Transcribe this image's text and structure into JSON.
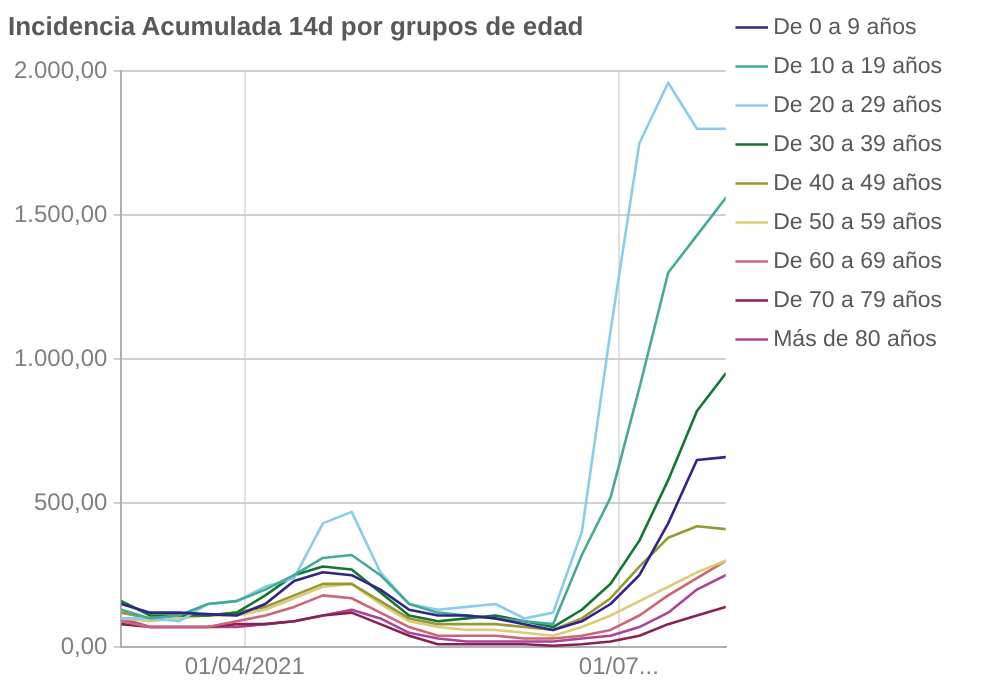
{
  "chart_data": {
    "type": "line",
    "title": "Incidencia Acumulada 14d por grupos de edad",
    "x": [
      "2021-03-02",
      "2021-03-09",
      "2021-03-16",
      "2021-03-23",
      "2021-03-30",
      "2021-04-06",
      "2021-04-13",
      "2021-04-20",
      "2021-04-27",
      "2021-05-04",
      "2021-05-11",
      "2021-05-18",
      "2021-05-25",
      "2021-06-01",
      "2021-06-08",
      "2021-06-15",
      "2021-06-22",
      "2021-06-29",
      "2021-07-06",
      "2021-07-13",
      "2021-07-20",
      "2021-07-27"
    ],
    "series": [
      {
        "name": "De 0 a 9 años",
        "color": "#332288",
        "values": [
          150,
          120,
          120,
          115,
          110,
          150,
          230,
          260,
          250,
          200,
          130,
          110,
          110,
          100,
          80,
          60,
          90,
          150,
          250,
          430,
          650,
          660
        ]
      },
      {
        "name": "De 10 a 19 años",
        "color": "#44aa99",
        "values": [
          130,
          100,
          110,
          150,
          160,
          200,
          250,
          310,
          320,
          250,
          150,
          120,
          110,
          100,
          90,
          80,
          320,
          520,
          900,
          1300,
          1430,
          1560
        ]
      },
      {
        "name": "De 20 a 29 años",
        "color": "#88ccee",
        "values": [
          100,
          100,
          90,
          150,
          160,
          210,
          240,
          430,
          470,
          260,
          150,
          130,
          140,
          150,
          100,
          120,
          400,
          1100,
          1750,
          1960,
          1800,
          1800
        ]
      },
      {
        "name": "De 30 a 39 años",
        "color": "#117733",
        "values": [
          160,
          110,
          110,
          110,
          120,
          180,
          250,
          280,
          270,
          190,
          110,
          90,
          100,
          110,
          90,
          70,
          130,
          220,
          370,
          580,
          820,
          950
        ]
      },
      {
        "name": "De 40 a 49 años",
        "color": "#999933",
        "values": [
          120,
          100,
          110,
          110,
          120,
          140,
          180,
          220,
          220,
          160,
          100,
          80,
          80,
          80,
          70,
          60,
          100,
          170,
          280,
          380,
          420,
          410
        ]
      },
      {
        "name": "De 50 a 59 años",
        "color": "#ddcc77",
        "values": [
          100,
          90,
          100,
          110,
          110,
          130,
          170,
          210,
          220,
          150,
          90,
          70,
          60,
          60,
          50,
          40,
          70,
          110,
          160,
          210,
          260,
          300
        ]
      },
      {
        "name": "De 60 a 69 años",
        "color": "#cc6677",
        "values": [
          90,
          70,
          70,
          70,
          90,
          110,
          140,
          180,
          170,
          120,
          70,
          40,
          40,
          40,
          30,
          30,
          40,
          60,
          110,
          180,
          240,
          300
        ]
      },
      {
        "name": "De 70 a 79 años",
        "color": "#882255",
        "values": [
          80,
          70,
          70,
          70,
          80,
          80,
          90,
          110,
          120,
          80,
          40,
          10,
          10,
          10,
          10,
          5,
          10,
          20,
          40,
          80,
          110,
          140
        ]
      },
      {
        "name": "Más de 80 años",
        "color": "#aa4499",
        "values": [
          100,
          70,
          70,
          70,
          70,
          80,
          90,
          110,
          130,
          100,
          50,
          30,
          20,
          20,
          20,
          20,
          30,
          40,
          70,
          120,
          200,
          250
        ]
      }
    ],
    "xlim": [
      "2021-03-02",
      "2021-07-27"
    ],
    "xticks": [
      {
        "value": "2021-04-01",
        "label": "01/04/2021"
      },
      {
        "value": "2021-07-01",
        "label": "01/07..."
      }
    ],
    "ylim": [
      0,
      2000
    ],
    "yticks": [
      {
        "value": 0,
        "label": "0,00"
      },
      {
        "value": 500,
        "label": "500,00"
      },
      {
        "value": 1000,
        "label": "1.000,00"
      },
      {
        "value": 1500,
        "label": "1.500,00"
      },
      {
        "value": 2000,
        "label": "2.000,00"
      }
    ],
    "grid": true,
    "legend": "right",
    "marker": "none",
    "line_style": "solid"
  }
}
